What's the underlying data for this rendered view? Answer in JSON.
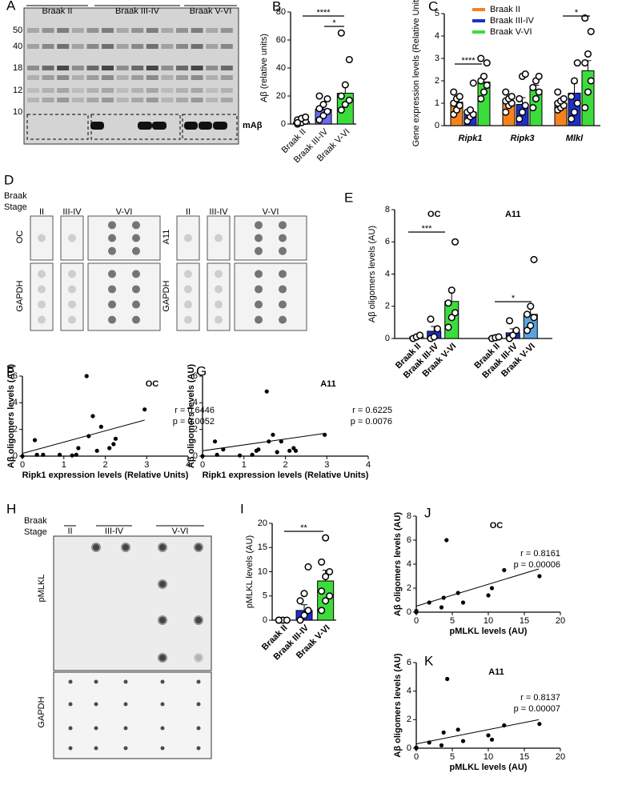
{
  "blots": {
    "A": {
      "panel": "A",
      "lanes": [
        "Braak II",
        "Braak III-IV",
        "Braak V-VI"
      ],
      "markers": [
        50,
        40,
        18,
        12,
        10
      ],
      "band_label": "mAβ"
    },
    "D": {
      "panel": "D",
      "stage": [
        "Braak",
        "Stage"
      ],
      "lanes": [
        "II",
        "III-IV",
        "V-VI"
      ],
      "rows_left": [
        "OC",
        "GAPDH"
      ],
      "rows_right": [
        "A11",
        "GAPDH"
      ]
    },
    "H": {
      "panel": "H",
      "stage": [
        "Braak",
        "Stage"
      ],
      "lanes": [
        "II",
        "III-IV",
        "V-VI"
      ],
      "rows": [
        "pMLKL",
        "GAPDH"
      ]
    }
  },
  "chart_data": [
    {
      "type": "bar",
      "panel": "B",
      "ylabel": "Aβ (relative units)",
      "categories": [
        "Braak II",
        "Braak III-IV",
        "Braak V-VI"
      ],
      "values": [
        1.5,
        10.5,
        22
      ],
      "errors": [
        1,
        3,
        5
      ],
      "colors": [
        "#ffffff",
        "#6b6bf2",
        "#3ddc3d"
      ],
      "points": [
        [
          0,
          1,
          2,
          3,
          4,
          5,
          1
        ],
        [
          3,
          6,
          9,
          11,
          14,
          18,
          20
        ],
        [
          10,
          14,
          17,
          20,
          28,
          46,
          65
        ]
      ],
      "ylim": [
        0,
        80
      ],
      "yticks": [
        0,
        20,
        40,
        60,
        80
      ],
      "significance": [
        "****",
        "*"
      ]
    },
    {
      "type": "bar",
      "panel": "C",
      "ylabel": "Gene expression levels (Relative Units)",
      "categories": [
        "Ripk1",
        "Ripk3",
        "Mlkl"
      ],
      "series": [
        {
          "name": "Braak II",
          "color": "#f5821f",
          "values": [
            1.05,
            1.05,
            1.0
          ],
          "errors": [
            0.12,
            0.15,
            0.15
          ],
          "points": [
            [
              0.5,
              0.7,
              0.9,
              1.0,
              1.2,
              1.3,
              1.5
            ],
            [
              0.6,
              0.9,
              1.0,
              1.1,
              1.2,
              1.3,
              1.5
            ],
            [
              0.7,
              0.8,
              0.9,
              1.0,
              1.1,
              1.2,
              1.5
            ]
          ]
        },
        {
          "name": "Braak III-IV",
          "color": "#1f2fc8",
          "values": [
            0.6,
            0.95,
            1.45
          ],
          "errors": [
            0.1,
            0.3,
            0.45
          ],
          "points": [
            [
              0.2,
              0.4,
              0.5,
              0.6,
              0.7,
              1.9
            ],
            [
              0.3,
              0.6,
              0.9,
              1.2,
              2.2,
              2.3
            ],
            [
              0.3,
              0.6,
              1.0,
              1.3,
              2.0,
              2.8
            ]
          ]
        },
        {
          "name": "Braak V-VI",
          "color": "#3ddc3d",
          "values": [
            1.95,
            1.6,
            2.45
          ],
          "errors": [
            0.2,
            0.2,
            0.45
          ],
          "points": [
            [
              1.2,
              1.5,
              1.8,
              2.0,
              2.2,
              2.8,
              3.0
            ],
            [
              0.8,
              1.2,
              1.5,
              1.7,
              2.0,
              2.2
            ],
            [
              0.8,
              1.5,
              2.0,
              2.8,
              3.2,
              4.2,
              4.8
            ]
          ]
        }
      ],
      "ylim": [
        0,
        5
      ],
      "yticks": [
        0,
        1,
        2,
        3,
        4,
        5
      ],
      "legend": "top-right",
      "significance": [
        "****",
        "*"
      ]
    },
    {
      "type": "bar",
      "panel": "E",
      "ylabel": "Aβ oligomers levels (AU)",
      "categories": [
        "OC",
        "A11"
      ],
      "series": [
        {
          "name": "Braak II",
          "colors": [
            "#f5821f",
            "#f5821f"
          ],
          "values": [
            0.1,
            0.05
          ],
          "errors": [
            0.05,
            0.05
          ],
          "points": [
            [
              0,
              0.1,
              0.2
            ],
            [
              0,
              0.05,
              0.1
            ]
          ]
        },
        {
          "name": "Braak III-IV",
          "colors": [
            "#1f2fc8",
            "#1f2fc8"
          ],
          "values": [
            0.45,
            0.35
          ],
          "errors": [
            0.3,
            0.25
          ],
          "points": [
            [
              0,
              0.1,
              0.6,
              1.2
            ],
            [
              0,
              0.2,
              0.5,
              1.1
            ]
          ]
        },
        {
          "name": "Braak V-VI",
          "colors": [
            "#3ddc3d",
            "#5ba3e0"
          ],
          "values": [
            2.3,
            1.5
          ],
          "errors": [
            0.7,
            0.45
          ],
          "points": [
            [
              0.7,
              1.3,
              1.6,
              2.2,
              3.0,
              6.0
            ],
            [
              0.5,
              0.8,
              1.3,
              1.5,
              2.0,
              4.9
            ]
          ]
        }
      ],
      "ylim": [
        0,
        8
      ],
      "yticks": [
        0,
        2,
        4,
        6,
        8
      ],
      "significance": [
        "***",
        "*"
      ]
    },
    {
      "type": "scatter",
      "panel": "F",
      "title": "OC",
      "xlabel": "Ripk1 expression levels (Relative Units)",
      "ylabel": "Aβ oligomers levels (AU)",
      "x": [
        0,
        0.3,
        0.35,
        0.5,
        0.9,
        1.2,
        1.3,
        1.35,
        1.55,
        1.6,
        1.7,
        1.8,
        1.9,
        2.1,
        2.2,
        2.25,
        2.95
      ],
      "y": [
        0,
        1.2,
        0.1,
        0.1,
        0.1,
        0.05,
        0.1,
        0.6,
        6.0,
        1.5,
        3.0,
        0.4,
        2.2,
        0.6,
        0.9,
        1.3,
        3.5
      ],
      "fit": {
        "x": [
          0,
          2.95
        ],
        "y": [
          0.2,
          2.7
        ]
      },
      "annotations": [
        "r = 0.6446",
        "p = 0.0052"
      ],
      "xlim": [
        0,
        4
      ],
      "xticks": [
        0,
        1,
        2,
        3,
        4
      ],
      "ylim": [
        0,
        6
      ],
      "yticks": [
        0,
        2,
        4,
        6
      ]
    },
    {
      "type": "scatter",
      "panel": "G",
      "title": "A11",
      "xlabel": "Ripk1 expression levels (Relative Units)",
      "ylabel": "Aβ oligomers levels (AU)",
      "x": [
        0,
        0.3,
        0.35,
        0.5,
        0.9,
        1.2,
        1.3,
        1.35,
        1.55,
        1.6,
        1.7,
        1.8,
        1.9,
        2.1,
        2.2,
        2.25,
        2.95
      ],
      "y": [
        0,
        1.1,
        0.1,
        0.5,
        0.05,
        0.1,
        0.4,
        0.5,
        4.85,
        1.1,
        1.6,
        0.3,
        1.1,
        0.4,
        0.6,
        0.4,
        1.6
      ],
      "fit": {
        "x": [
          0,
          2.95
        ],
        "y": [
          0.4,
          1.7
        ]
      },
      "annotations": [
        "r = 0.6225",
        "p = 0.0076"
      ],
      "xlim": [
        0,
        4
      ],
      "xticks": [
        0,
        1,
        2,
        3,
        4
      ],
      "ylim": [
        0,
        6
      ],
      "yticks": [
        0,
        2,
        4,
        6
      ]
    },
    {
      "type": "bar",
      "panel": "I",
      "ylabel": "pMLKL levels (AU)",
      "categories": [
        "Braak II",
        "Braak III-IV",
        "Braak V-VI"
      ],
      "values": [
        0,
        2,
        8.1
      ],
      "errors": [
        0.1,
        1.2,
        2.2
      ],
      "colors": [
        "#ffffff",
        "#1f2fc8",
        "#3ddc3d"
      ],
      "points": [
        [
          0,
          0,
          0,
          0
        ],
        [
          0,
          1,
          2,
          4,
          5.5,
          11
        ],
        [
          2,
          4,
          5,
          6,
          9,
          10,
          12,
          17
        ]
      ],
      "ylim": [
        0,
        20
      ],
      "yticks": [
        0,
        5,
        10,
        15,
        20
      ],
      "significance": [
        "**"
      ]
    },
    {
      "type": "scatter",
      "panel": "J",
      "title": "OC",
      "xlabel": "pMLKL levels (AU)",
      "ylabel": "Aβ oligomers levels (AU)",
      "x": [
        0,
        0,
        1.8,
        3.5,
        3.8,
        4.2,
        5.8,
        6.5,
        10,
        10.5,
        12.2,
        17.1
      ],
      "y": [
        0,
        0.1,
        0.8,
        0.4,
        1.2,
        6.0,
        1.6,
        0.8,
        1.4,
        2.0,
        3.5,
        3.0
      ],
      "fit": {
        "x": [
          0,
          17
        ],
        "y": [
          0.5,
          3.6
        ]
      },
      "annotations": [
        "r = 0.8161",
        "p = 0.00006"
      ],
      "xlim": [
        0,
        20
      ],
      "xticks": [
        0,
        5,
        10,
        15,
        20
      ],
      "ylim": [
        0,
        8
      ],
      "yticks": [
        0,
        2,
        4,
        6,
        8
      ]
    },
    {
      "type": "scatter",
      "panel": "K",
      "title": "A11",
      "xlabel": "pMLKL levels (AU)",
      "ylabel": "Aβ oligomers levels (AU)",
      "x": [
        0,
        0,
        1.8,
        3.5,
        3.8,
        4.3,
        5.8,
        6.5,
        10,
        10.5,
        12.2,
        17.1
      ],
      "y": [
        0,
        0.05,
        0.4,
        0.2,
        1.1,
        4.85,
        1.3,
        0.5,
        0.9,
        0.6,
        1.6,
        1.7
      ],
      "fit": {
        "x": [
          0,
          17
        ],
        "y": [
          0.3,
          2.0
        ]
      },
      "annotations": [
        "r = 0.8137",
        "p = 0.00007"
      ],
      "xlim": [
        0,
        20
      ],
      "xticks": [
        0,
        5,
        10,
        15,
        20
      ],
      "ylim": [
        0,
        6
      ],
      "yticks": [
        0,
        2,
        4,
        6
      ]
    }
  ]
}
